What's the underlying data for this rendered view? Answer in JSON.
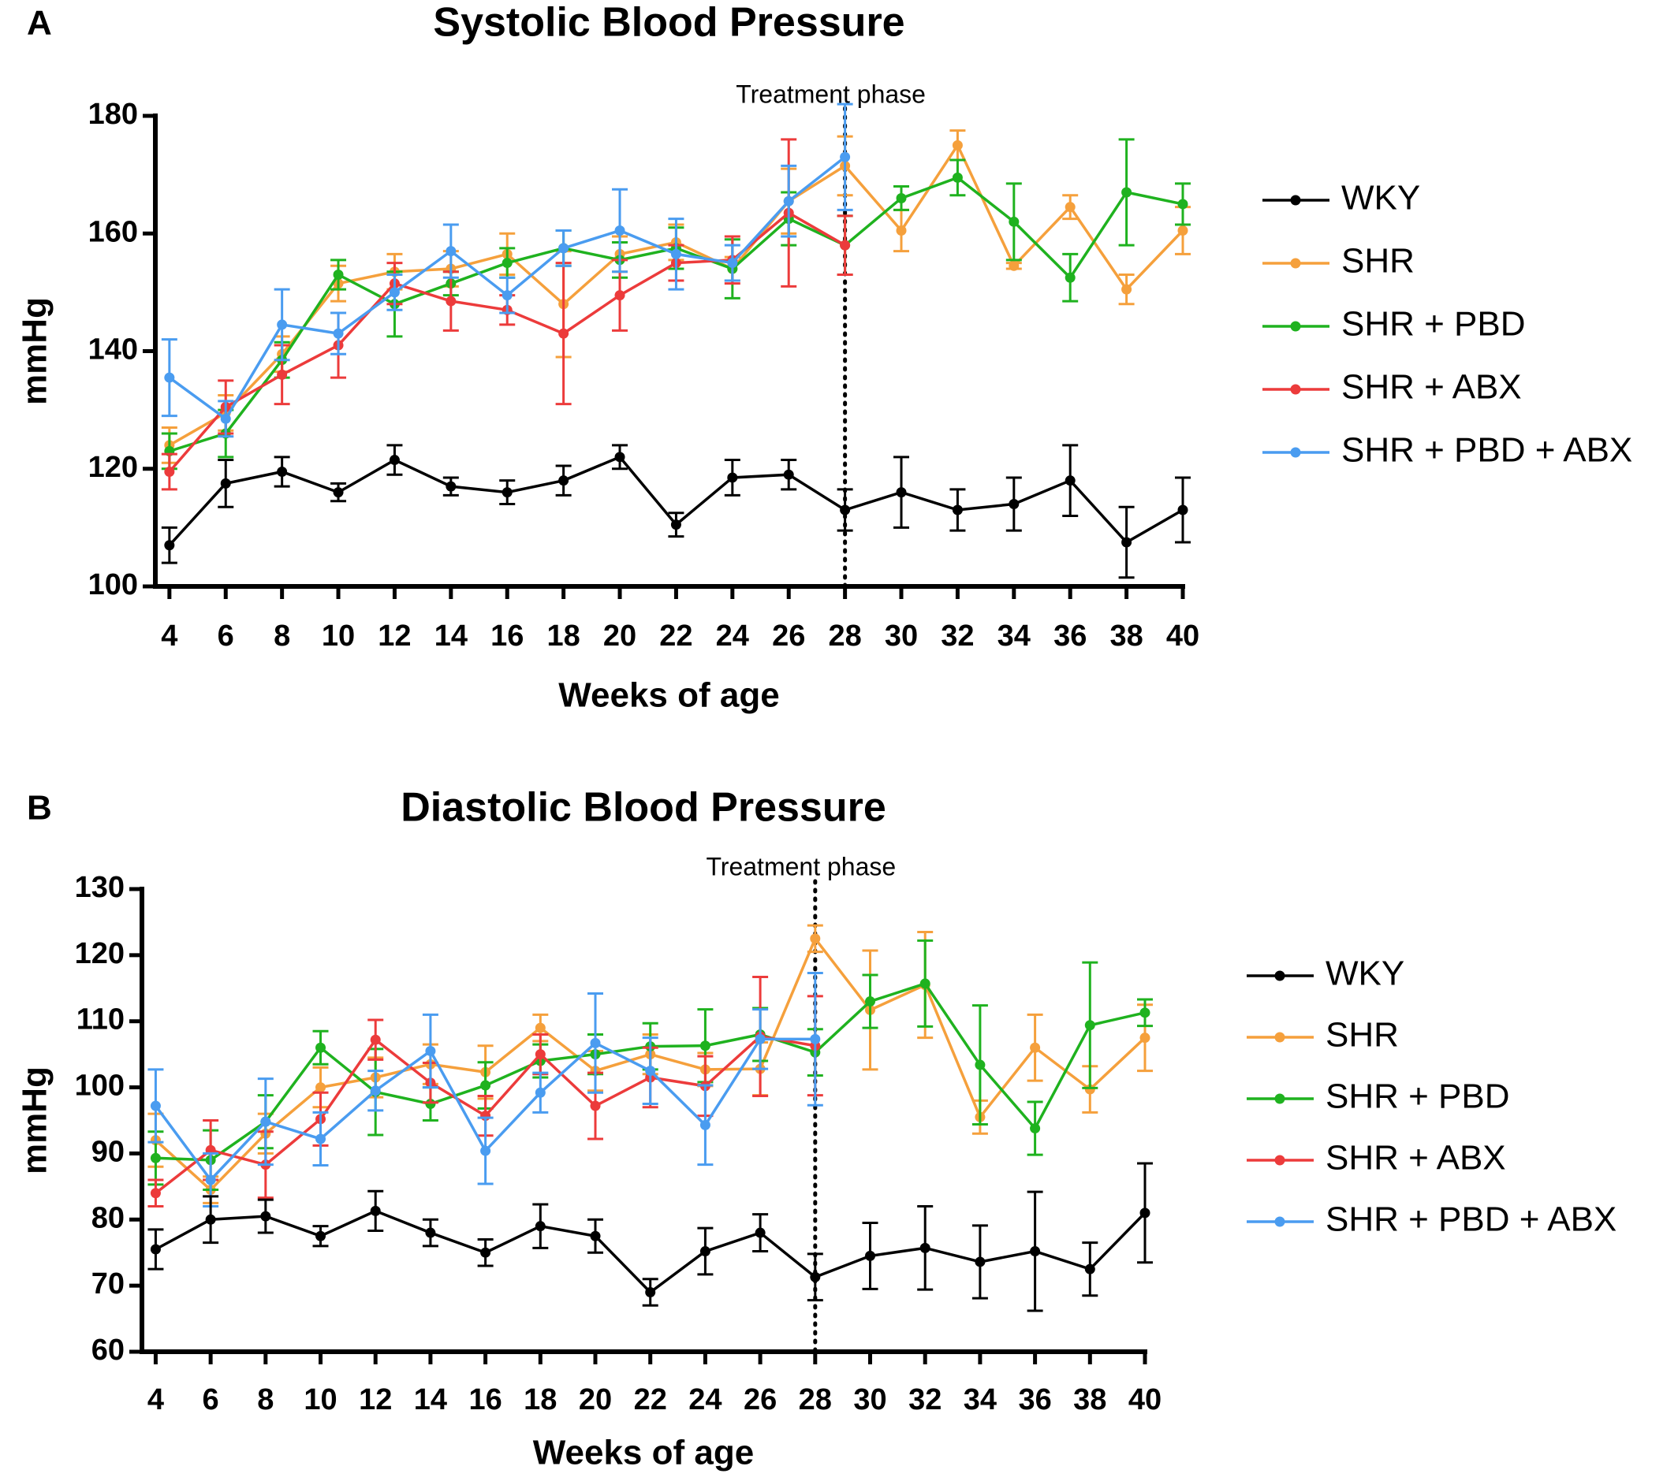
{
  "chart_data": [
    {
      "type": "line",
      "panel": "A",
      "title": "Systolic Blood Pressure",
      "xlabel": "Weeks of age",
      "ylabel": "mmHg",
      "annotation": {
        "text": "Treatment phase",
        "x": 28
      },
      "x": [
        4,
        6,
        8,
        10,
        12,
        14,
        16,
        18,
        20,
        22,
        24,
        26,
        28,
        30,
        32,
        34,
        36,
        38,
        40
      ],
      "xlim": [
        3.5,
        40
      ],
      "xticks": [
        4,
        6,
        8,
        10,
        12,
        14,
        16,
        18,
        20,
        22,
        24,
        26,
        28,
        30,
        32,
        34,
        36,
        38,
        40
      ],
      "ylim": [
        100,
        180
      ],
      "yticks": [
        100,
        120,
        140,
        160,
        180
      ],
      "series": [
        {
          "name": "WKY",
          "color": "#000000",
          "values": [
            107,
            117.5,
            119.5,
            116,
            121.5,
            117,
            116,
            118,
            122,
            110.5,
            118.5,
            119,
            113,
            116,
            113,
            114,
            118,
            107.5,
            113
          ],
          "errors": [
            3,
            4,
            2.5,
            1.5,
            2.5,
            1.5,
            2,
            2.5,
            2,
            2,
            3,
            2.5,
            3.5,
            6,
            3.5,
            4.5,
            6,
            6,
            5.5
          ]
        },
        {
          "name": "SHR",
          "color": "#f5a03c",
          "values": [
            124,
            129.5,
            139.5,
            151.5,
            153.5,
            154,
            156.5,
            148,
            156.5,
            158.5,
            154,
            165.5,
            171.5,
            160.5,
            175,
            154.5,
            164.5,
            150.5,
            160.5
          ],
          "errors": [
            3,
            3,
            3,
            3,
            3,
            3,
            3.5,
            9,
            3,
            3,
            2,
            5.5,
            5,
            3.5,
            2.5,
            0.5,
            2,
            2.5,
            4
          ]
        },
        {
          "name": "SHR + PBD",
          "color": "#1fb21f",
          "values": [
            123,
            126,
            138.5,
            153,
            148,
            151.5,
            155,
            157.5,
            155.5,
            157.5,
            154,
            162.5,
            158,
            166,
            169.5,
            162,
            152.5,
            167,
            165
          ],
          "errors": [
            3,
            4,
            3,
            2.5,
            5.5,
            2,
            2.5,
            3,
            3,
            3.5,
            5,
            4.5,
            5,
            2,
            3,
            6.5,
            4,
            9,
            3.5
          ]
        },
        {
          "name": "SHR + ABX",
          "color": "#ec3b3b",
          "values": [
            119.5,
            130.5,
            136,
            141,
            151.5,
            148.5,
            147,
            143,
            149.5,
            155,
            155.5,
            163.5,
            158,
            null,
            null,
            null,
            null,
            null,
            null
          ],
          "errors": [
            3,
            4.5,
            5,
            5.5,
            3.5,
            5,
            2.5,
            12,
            6,
            3,
            4,
            12.5,
            5,
            null,
            null,
            null,
            null,
            null,
            null
          ]
        },
        {
          "name": "SHR + PBD + ABX",
          "color": "#4a9cf0",
          "values": [
            135.5,
            128.5,
            144.5,
            143,
            150,
            157,
            149.5,
            157.5,
            160.5,
            156.5,
            155,
            165.5,
            173,
            null,
            null,
            null,
            null,
            null,
            null
          ],
          "errors": [
            6.5,
            3,
            6,
            3.5,
            3,
            4.5,
            3,
            3,
            7,
            6,
            3,
            6,
            9,
            null,
            null,
            null,
            null,
            null,
            null
          ]
        }
      ]
    },
    {
      "type": "line",
      "panel": "B",
      "title": "Diastolic Blood Pressure",
      "xlabel": "Weeks of age",
      "ylabel": "mmHg",
      "annotation": {
        "text": "Treatment phase",
        "x": 28
      },
      "x": [
        4,
        6,
        8,
        10,
        12,
        14,
        16,
        18,
        20,
        22,
        24,
        26,
        28,
        30,
        32,
        34,
        36,
        38,
        40
      ],
      "xlim": [
        3.5,
        40
      ],
      "xticks": [
        4,
        6,
        8,
        10,
        12,
        14,
        16,
        18,
        20,
        22,
        24,
        26,
        28,
        30,
        32,
        34,
        36,
        38,
        40
      ],
      "ylim": [
        60,
        130
      ],
      "yticks": [
        60,
        70,
        80,
        90,
        100,
        110,
        120,
        130
      ],
      "series": [
        {
          "name": "WKY",
          "color": "#000000",
          "values": [
            75.5,
            80,
            80.5,
            77.5,
            81.3,
            78,
            75,
            79,
            77.5,
            69,
            75.2,
            78,
            71.3,
            74.5,
            75.7,
            73.6,
            75.2,
            72.5,
            81
          ],
          "errors": [
            3,
            3.5,
            2.5,
            1.5,
            3,
            2,
            2,
            3.3,
            2.5,
            2,
            3.5,
            2.8,
            3.5,
            5,
            6.3,
            5.5,
            9,
            4,
            7.5
          ]
        },
        {
          "name": "SHR",
          "color": "#f5a03c",
          "values": [
            92,
            84.5,
            93,
            100,
            101.5,
            103.5,
            102.3,
            109,
            102.5,
            105,
            102.7,
            102.8,
            122.5,
            111.7,
            115.5,
            95.5,
            106,
            99.7,
            107.5
          ],
          "errors": [
            4,
            2,
            3,
            3,
            3,
            3,
            4,
            2,
            3,
            3,
            2.5,
            4,
            2,
            9,
            8,
            2.5,
            5,
            3.5,
            5
          ]
        },
        {
          "name": "SHR + PBD",
          "color": "#1fb21f",
          "values": [
            89.3,
            89,
            94.8,
            106,
            99.3,
            97.5,
            100.3,
            104,
            105,
            106.2,
            106.3,
            108,
            105.3,
            113,
            115.7,
            103.4,
            93.8,
            109.4,
            111.3
          ],
          "errors": [
            4,
            4.5,
            4,
            2.5,
            6.5,
            2.5,
            3.5,
            2.5,
            3,
            3.5,
            5.5,
            4,
            3.5,
            4,
            6.5,
            9,
            4,
            9.5,
            2
          ]
        },
        {
          "name": "SHR + ABX",
          "color": "#ec3b3b",
          "values": [
            84,
            90.5,
            88.3,
            95.2,
            107.2,
            100.7,
            95.7,
            105,
            97.2,
            101.5,
            100.2,
            107.7,
            106.3,
            null,
            null,
            null,
            null,
            null,
            null
          ],
          "errors": [
            2,
            4.5,
            5,
            4,
            3,
            3,
            3,
            3,
            5,
            4.5,
            4.5,
            9,
            7.5,
            null,
            null,
            null,
            null,
            null,
            null
          ]
        },
        {
          "name": "SHR + PBD + ABX",
          "color": "#4a9cf0",
          "values": [
            97.2,
            86,
            94.8,
            92.2,
            99.5,
            105.5,
            90.4,
            99.2,
            106.7,
            102.5,
            94.3,
            107.3,
            107.3,
            null,
            null,
            null,
            null,
            null,
            null
          ],
          "errors": [
            5.5,
            4,
            6.5,
            4,
            3,
            5.5,
            5,
            3,
            7.5,
            5,
            6,
            4.5,
            10,
            null,
            null,
            null,
            null,
            null,
            null
          ]
        }
      ]
    }
  ]
}
